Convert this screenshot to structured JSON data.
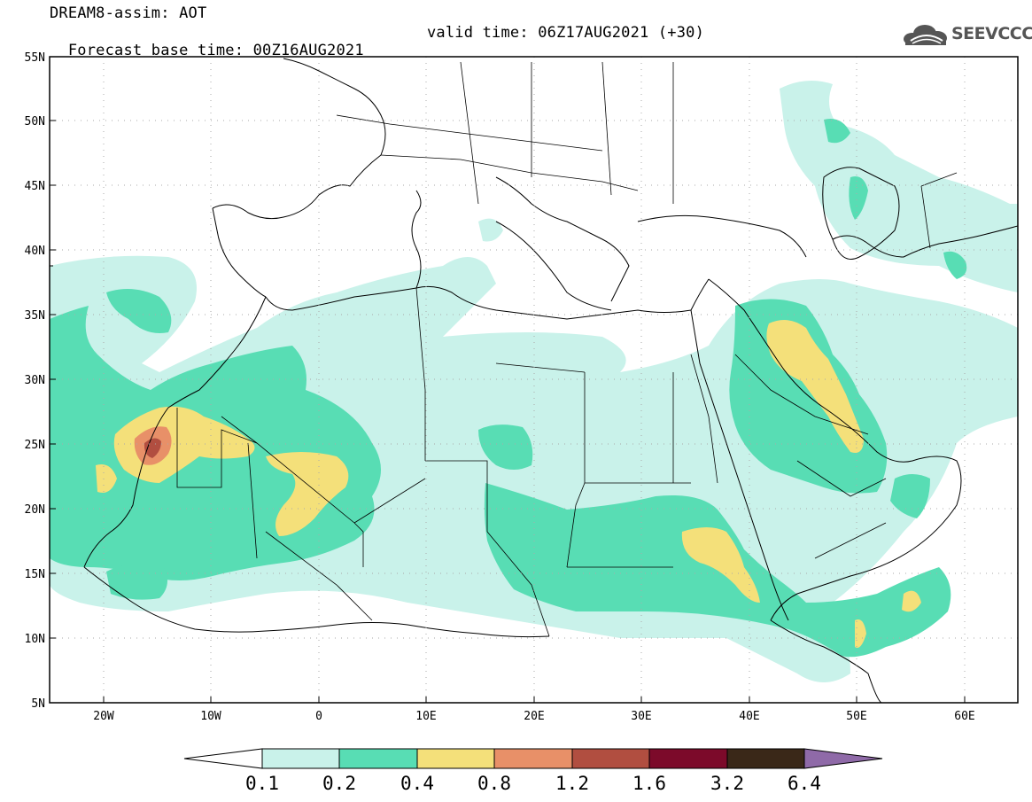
{
  "header": {
    "line1": "DREAM8-assim: AOT",
    "base_time": "Forecast base time: 00Z16AUG2021",
    "valid_time": "valid time: 06Z17AUG2021 (+30)",
    "logo_text": "SEEVCCC",
    "logo_icon": "cloud-icon"
  },
  "axes": {
    "lat_labels": [
      "55N",
      "50N",
      "45N",
      "40N",
      "35N",
      "30N",
      "25N",
      "20N",
      "15N",
      "10N",
      "5N"
    ],
    "lon_labels": [
      "20W",
      "10W",
      "0",
      "10E",
      "20E",
      "30E",
      "40E",
      "50E",
      "60E"
    ]
  },
  "colorbar": {
    "labels": [
      "0.1",
      "0.2",
      "0.4",
      "0.8",
      "1.2",
      "1.6",
      "3.2",
      "6.4"
    ],
    "colors": [
      "#ffffff",
      "#c9f2ea",
      "#58ddb4",
      "#f4e07a",
      "#e89068",
      "#b14e40",
      "#7c0a2a",
      "#3a2818",
      "#8f6aa8"
    ]
  },
  "palette": {
    "level1": "#c9f2ea",
    "level2": "#58ddb4",
    "level3": "#f4e07a",
    "level4": "#e89068",
    "level5": "#b14e40"
  }
}
